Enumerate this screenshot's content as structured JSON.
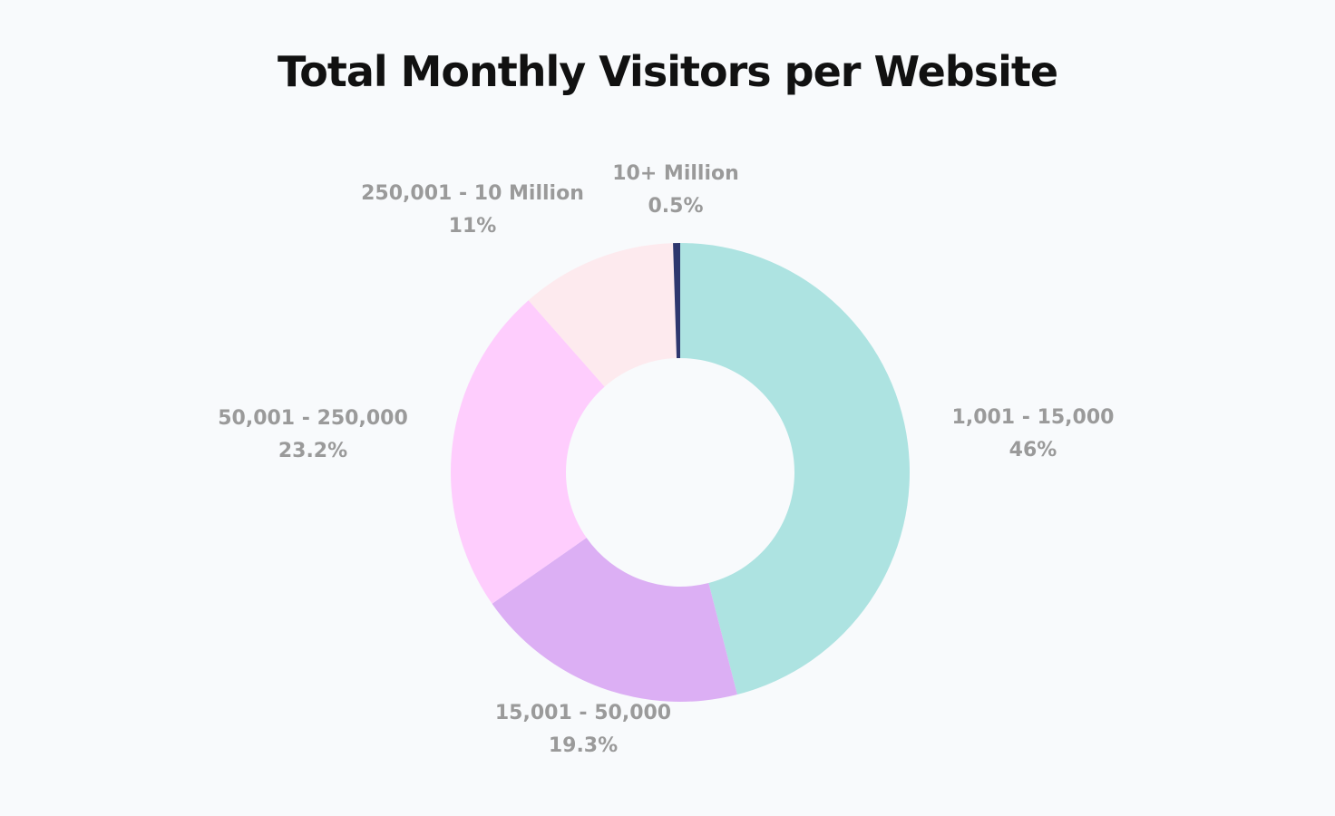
{
  "chart_data": {
    "type": "pie",
    "variant": "donut",
    "title": "Total Monthly Visitors per Website",
    "start": "top",
    "direction": "clockwise",
    "slices": [
      {
        "label": "1,001 - 15,000",
        "value": 46,
        "value_label": "46%",
        "color": "#ade3e1"
      },
      {
        "label": "15,001 - 50,000",
        "value": 19.3,
        "value_label": "19.3%",
        "color": "#dcaff4"
      },
      {
        "label": "50,001 - 250,000",
        "value": 23.2,
        "value_label": "23.2%",
        "color": "#fecdfd"
      },
      {
        "label": "250,001 - 10 Million",
        "value": 11,
        "value_label": "11%",
        "color": "#fdeaee"
      },
      {
        "label": "10+ Million",
        "value": 0.5,
        "value_label": "0.5%",
        "color": "#2e376e"
      }
    ]
  }
}
